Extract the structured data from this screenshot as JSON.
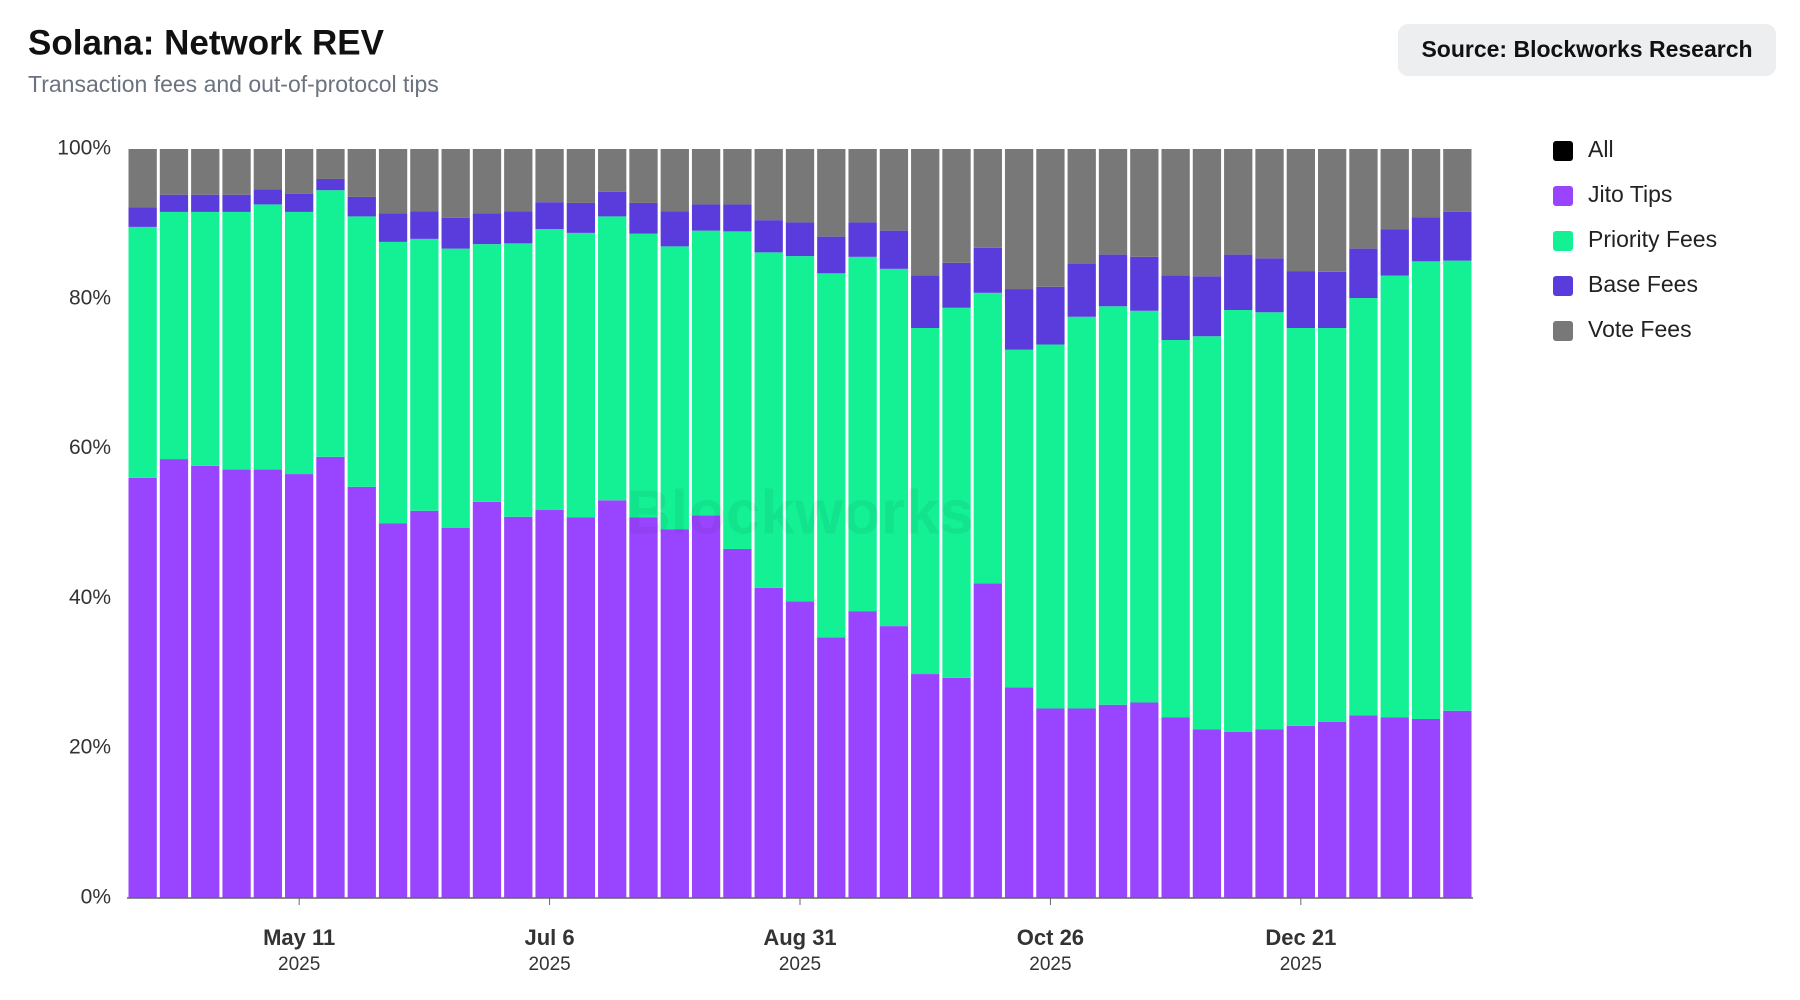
{
  "chart_data": {
    "type": "stacked_bar",
    "title": "Solana: Network REV",
    "subtitle": "Transaction fees and out-of-protocol tips",
    "source": "Source: Blockworks Research",
    "watermark": "Blockworks",
    "categories": [
      null,
      null,
      null,
      null,
      null,
      [
        "May 11",
        "2025"
      ],
      null,
      null,
      null,
      null,
      null,
      null,
      null,
      [
        "Jul 6",
        "2025"
      ],
      null,
      null,
      null,
      null,
      null,
      null,
      null,
      [
        "Aug 31",
        "2025"
      ],
      null,
      null,
      null,
      null,
      null,
      null,
      null,
      [
        "Oct 26",
        "2025"
      ],
      null,
      null,
      null,
      null,
      null,
      null,
      null,
      [
        "Dec 21",
        "2025"
      ],
      null,
      null,
      null,
      null,
      null
    ],
    "legend_items": [
      {
        "name": "All",
        "color": "#000000"
      }
    ],
    "series": [
      {
        "name": "Jito Tips",
        "color": "#9945ff",
        "values": [
          56.1,
          58.6,
          57.7,
          57.2,
          57.2,
          56.6,
          58.9,
          54.9,
          50.0,
          51.7,
          49.4,
          52.9,
          50.9,
          51.8,
          50.8,
          53.1,
          50.8,
          49.2,
          51.1,
          46.6,
          41.4,
          39.6,
          34.8,
          38.3,
          36.3,
          29.9,
          29.4,
          42.0,
          28.1,
          25.3,
          25.3,
          25.8,
          26.1,
          24.1,
          22.5,
          22.2,
          22.5,
          23.0,
          23.5,
          24.4,
          24.1,
          23.9,
          25.0
        ]
      },
      {
        "name": "Priority Fees",
        "color": "#14f195",
        "values": [
          33.5,
          33.0,
          33.9,
          34.4,
          35.4,
          35.0,
          35.6,
          36.1,
          37.6,
          36.3,
          37.3,
          34.4,
          36.5,
          37.5,
          38.0,
          37.9,
          37.9,
          37.8,
          38.0,
          42.4,
          44.8,
          46.1,
          48.6,
          47.3,
          47.7,
          46.2,
          49.4,
          38.8,
          45.1,
          48.6,
          52.3,
          53.2,
          52.3,
          50.4,
          52.5,
          56.3,
          55.7,
          53.1,
          52.6,
          55.7,
          59.0,
          61.1,
          60.1
        ]
      },
      {
        "name": "Base Fees",
        "color": "#5a3bdb",
        "values": [
          2.6,
          2.3,
          2.3,
          2.3,
          2.0,
          2.4,
          1.5,
          2.6,
          3.8,
          3.7,
          4.1,
          4.1,
          4.3,
          3.6,
          4.0,
          3.3,
          4.1,
          4.7,
          3.5,
          3.6,
          4.3,
          4.5,
          4.9,
          4.6,
          5.1,
          7.0,
          6.0,
          6.0,
          8.1,
          7.7,
          7.1,
          6.9,
          7.2,
          8.6,
          8.0,
          7.4,
          7.2,
          7.6,
          7.5,
          6.6,
          6.2,
          5.9,
          6.5
        ]
      },
      {
        "name": "Vote Fees",
        "color": "#787878",
        "values": [
          7.8,
          6.1,
          6.1,
          6.1,
          5.4,
          6.0,
          4.0,
          6.4,
          8.6,
          8.3,
          9.2,
          8.6,
          8.3,
          7.1,
          7.2,
          5.7,
          7.2,
          8.3,
          7.4,
          7.4,
          9.5,
          9.8,
          11.7,
          9.8,
          10.9,
          16.9,
          15.2,
          13.2,
          18.7,
          18.4,
          15.3,
          14.1,
          14.4,
          16.9,
          17.0,
          14.1,
          14.6,
          16.3,
          16.4,
          13.3,
          10.7,
          9.1,
          8.4
        ]
      }
    ],
    "ylim": [
      0,
      100
    ],
    "yticks": [
      {
        "value": 0,
        "label": "0%"
      },
      {
        "value": 20,
        "label": "20%"
      },
      {
        "value": 40,
        "label": "40%"
      },
      {
        "value": 60,
        "label": "60%"
      },
      {
        "value": 80,
        "label": "80%"
      },
      {
        "value": 100,
        "label": "100%"
      }
    ]
  }
}
